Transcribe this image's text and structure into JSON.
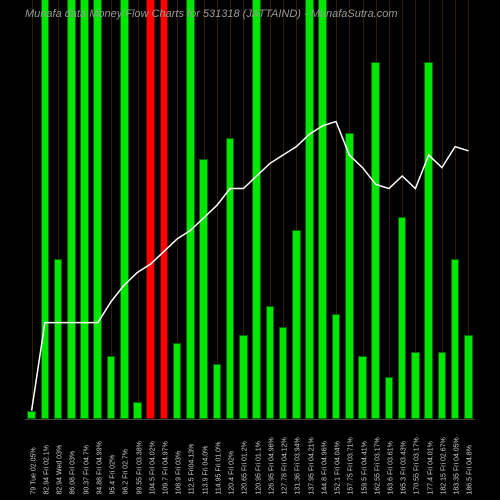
{
  "title": "Munafa data Money Flow Charts for 531318          (JATTAIND) - MunafaSutra.com",
  "chart": {
    "type": "bar+line",
    "background_color": "#000000",
    "bar_colors": {
      "up": "#00e600",
      "down": "#ff0000"
    },
    "bar_border": "#006600",
    "grid_color": "#8b5a00",
    "line_color": "#ffffff",
    "label_color": "#cccccc",
    "title_color": "#999999",
    "title_fontsize": 11,
    "label_fontsize": 7,
    "y_max": 100,
    "bar_width_ratio": 0.65,
    "bars": [
      {
        "label": "79 Tue 02.05%",
        "value": 2,
        "dir": "up",
        "line": 2
      },
      {
        "label": "82.94 Fri 02.1%",
        "value": 100,
        "dir": "up",
        "line": 23
      },
      {
        "label": "82.94 Wed 03%",
        "value": 38,
        "dir": "up",
        "line": 23
      },
      {
        "label": "86.08 Fri 03%",
        "value": 100,
        "dir": "up",
        "line": 23
      },
      {
        "label": "90.37 Fri 04.7%",
        "value": 100,
        "dir": "up",
        "line": 23
      },
      {
        "label": "94.88 Fri 04.99%",
        "value": 100,
        "dir": "up",
        "line": 23
      },
      {
        "label": "95.4 Fri 02%",
        "value": 15,
        "dir": "up",
        "line": 28
      },
      {
        "label": "96.2 Fri 02.7%",
        "value": 100,
        "dir": "up",
        "line": 32
      },
      {
        "label": "99.55 Fri 03.38%",
        "value": 4,
        "dir": "up",
        "line": 35
      },
      {
        "label": "104.5 Fri 04.02%",
        "value": 100,
        "dir": "down",
        "line": 37
      },
      {
        "label": "109.7 Fri 04.97%",
        "value": 100,
        "dir": "down",
        "line": 40
      },
      {
        "label": "108.9 Fri 03%",
        "value": 18,
        "dir": "up",
        "line": 43
      },
      {
        "label": "112.5 Fri04.13%",
        "value": 100,
        "dir": "up",
        "line": 45
      },
      {
        "label": "113.9 Fri 04.0%",
        "value": 62,
        "dir": "up",
        "line": 48
      },
      {
        "label": "114.95 Fri 01.0%",
        "value": 13,
        "dir": "up",
        "line": 51
      },
      {
        "label": "120.4 Fri 02%",
        "value": 67,
        "dir": "up",
        "line": 55
      },
      {
        "label": "120.65 Fri 01.2%",
        "value": 20,
        "dir": "up",
        "line": 55
      },
      {
        "label": "120.95 Fri 01.1%",
        "value": 100,
        "dir": "up",
        "line": 58
      },
      {
        "label": "126.95 Fri 04.96%",
        "value": 27,
        "dir": "up",
        "line": 61
      },
      {
        "label": "127.78 Fri 04.12%",
        "value": 22,
        "dir": "up",
        "line": 63
      },
      {
        "label": "131.36 Fri 03.94%",
        "value": 45,
        "dir": "up",
        "line": 65
      },
      {
        "label": "137.95 Fri 04.21%",
        "value": 100,
        "dir": "up",
        "line": 68
      },
      {
        "label": "144.8 Fri 04.96%",
        "value": 100,
        "dir": "up",
        "line": 70
      },
      {
        "label": "152.1 Fri 04.04%",
        "value": 25,
        "dir": "up",
        "line": 71
      },
      {
        "label": "157.75 Fri 03.71%",
        "value": 68,
        "dir": "up",
        "line": 63
      },
      {
        "label": "159.5 Fri 04.41%",
        "value": 15,
        "dir": "up",
        "line": 60
      },
      {
        "label": "162.55 Fri 03.17%",
        "value": 85,
        "dir": "up",
        "line": 56
      },
      {
        "label": "163.6 Fri 03.61%",
        "value": 10,
        "dir": "up",
        "line": 55
      },
      {
        "label": "165.3 Fri 03.43%",
        "value": 48,
        "dir": "up",
        "line": 58
      },
      {
        "label": "170.55 Fri 03.17%",
        "value": 16,
        "dir": "up",
        "line": 55
      },
      {
        "label": "177.4 Fri 04.01%",
        "value": 85,
        "dir": "up",
        "line": 63
      },
      {
        "label": "182.15 Fri 02.67%",
        "value": 16,
        "dir": "up",
        "line": 60
      },
      {
        "label": "183.35 Fri 04.05%",
        "value": 38,
        "dir": "up",
        "line": 65
      },
      {
        "label": "186.5 Fri 04.8%",
        "value": 20,
        "dir": "up",
        "line": 64
      }
    ]
  }
}
